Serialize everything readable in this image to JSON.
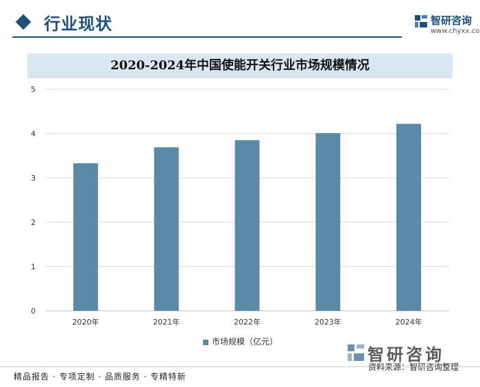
{
  "header": {
    "section_title": "行业现状",
    "logo_name": "智研咨询",
    "logo_url": "www.chyxx.com",
    "accent_color": "#1f4e79"
  },
  "chart_data": {
    "type": "bar",
    "title": "2020-2024年中国使能开关行业市场规模情况",
    "categories": [
      "2020年",
      "2021年",
      "2022年",
      "2023年",
      "2024年"
    ],
    "series": [
      {
        "name": "市场规模（亿元）",
        "values": [
          3.33,
          3.69,
          3.85,
          4.01,
          4.22
        ],
        "color": "#5b8aa6"
      }
    ],
    "ylim": [
      0,
      5
    ],
    "yticks": [
      "0",
      "1",
      "2",
      "3",
      "4",
      "5"
    ],
    "grid": true,
    "legend_position": "bottom"
  },
  "source": {
    "logo_text": "智研咨询",
    "text": "资料来源：智研咨询整理"
  },
  "footer": {
    "text": "精品报告 · 专项定制 · 品质服务 · 专精特新"
  }
}
